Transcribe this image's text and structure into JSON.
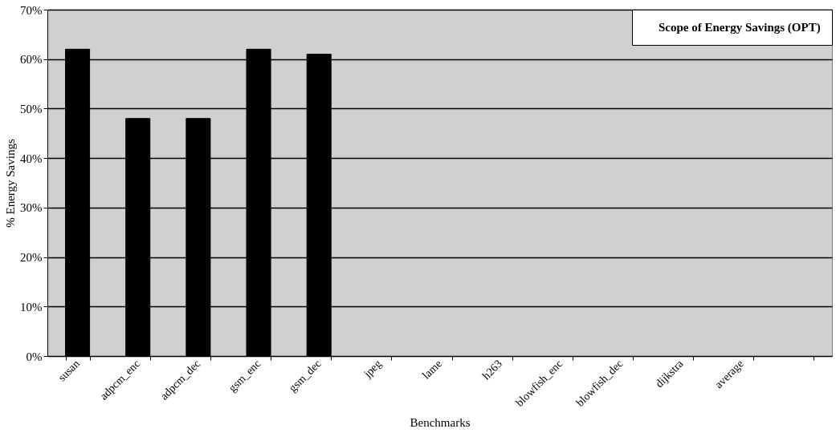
{
  "chart_data": {
    "type": "bar",
    "xlabel": "Benchmarks",
    "ylabel": "% Energy Savings",
    "categories": [
      "susan",
      "adpcm_enc",
      "adpcm_dec",
      "gsm_enc",
      "gsm_dec",
      "jpeg",
      "lame",
      "h263",
      "blowfish_enc",
      "blowfish_dec",
      "dijkstra",
      "average",
      null
    ],
    "series": [
      {
        "name": "Scope of Energy Savings (OPT)",
        "color": "#000000",
        "values": [
          62,
          48,
          48,
          62,
          61,
          null,
          null,
          null,
          null,
          null,
          null,
          null,
          null
        ]
      }
    ],
    "ylim": [
      0,
      70
    ],
    "yticks": [
      {
        "value": 0,
        "label": "0%"
      },
      {
        "value": 10,
        "label": "10%"
      },
      {
        "value": 20,
        "label": "20%"
      },
      {
        "value": 30,
        "label": "30%"
      },
      {
        "value": 40,
        "label": "40%"
      },
      {
        "value": 50,
        "label": "50%"
      },
      {
        "value": 60,
        "label": "60%"
      },
      {
        "value": 70,
        "label": "70%"
      }
    ],
    "grid": "y",
    "legend": "top right"
  }
}
